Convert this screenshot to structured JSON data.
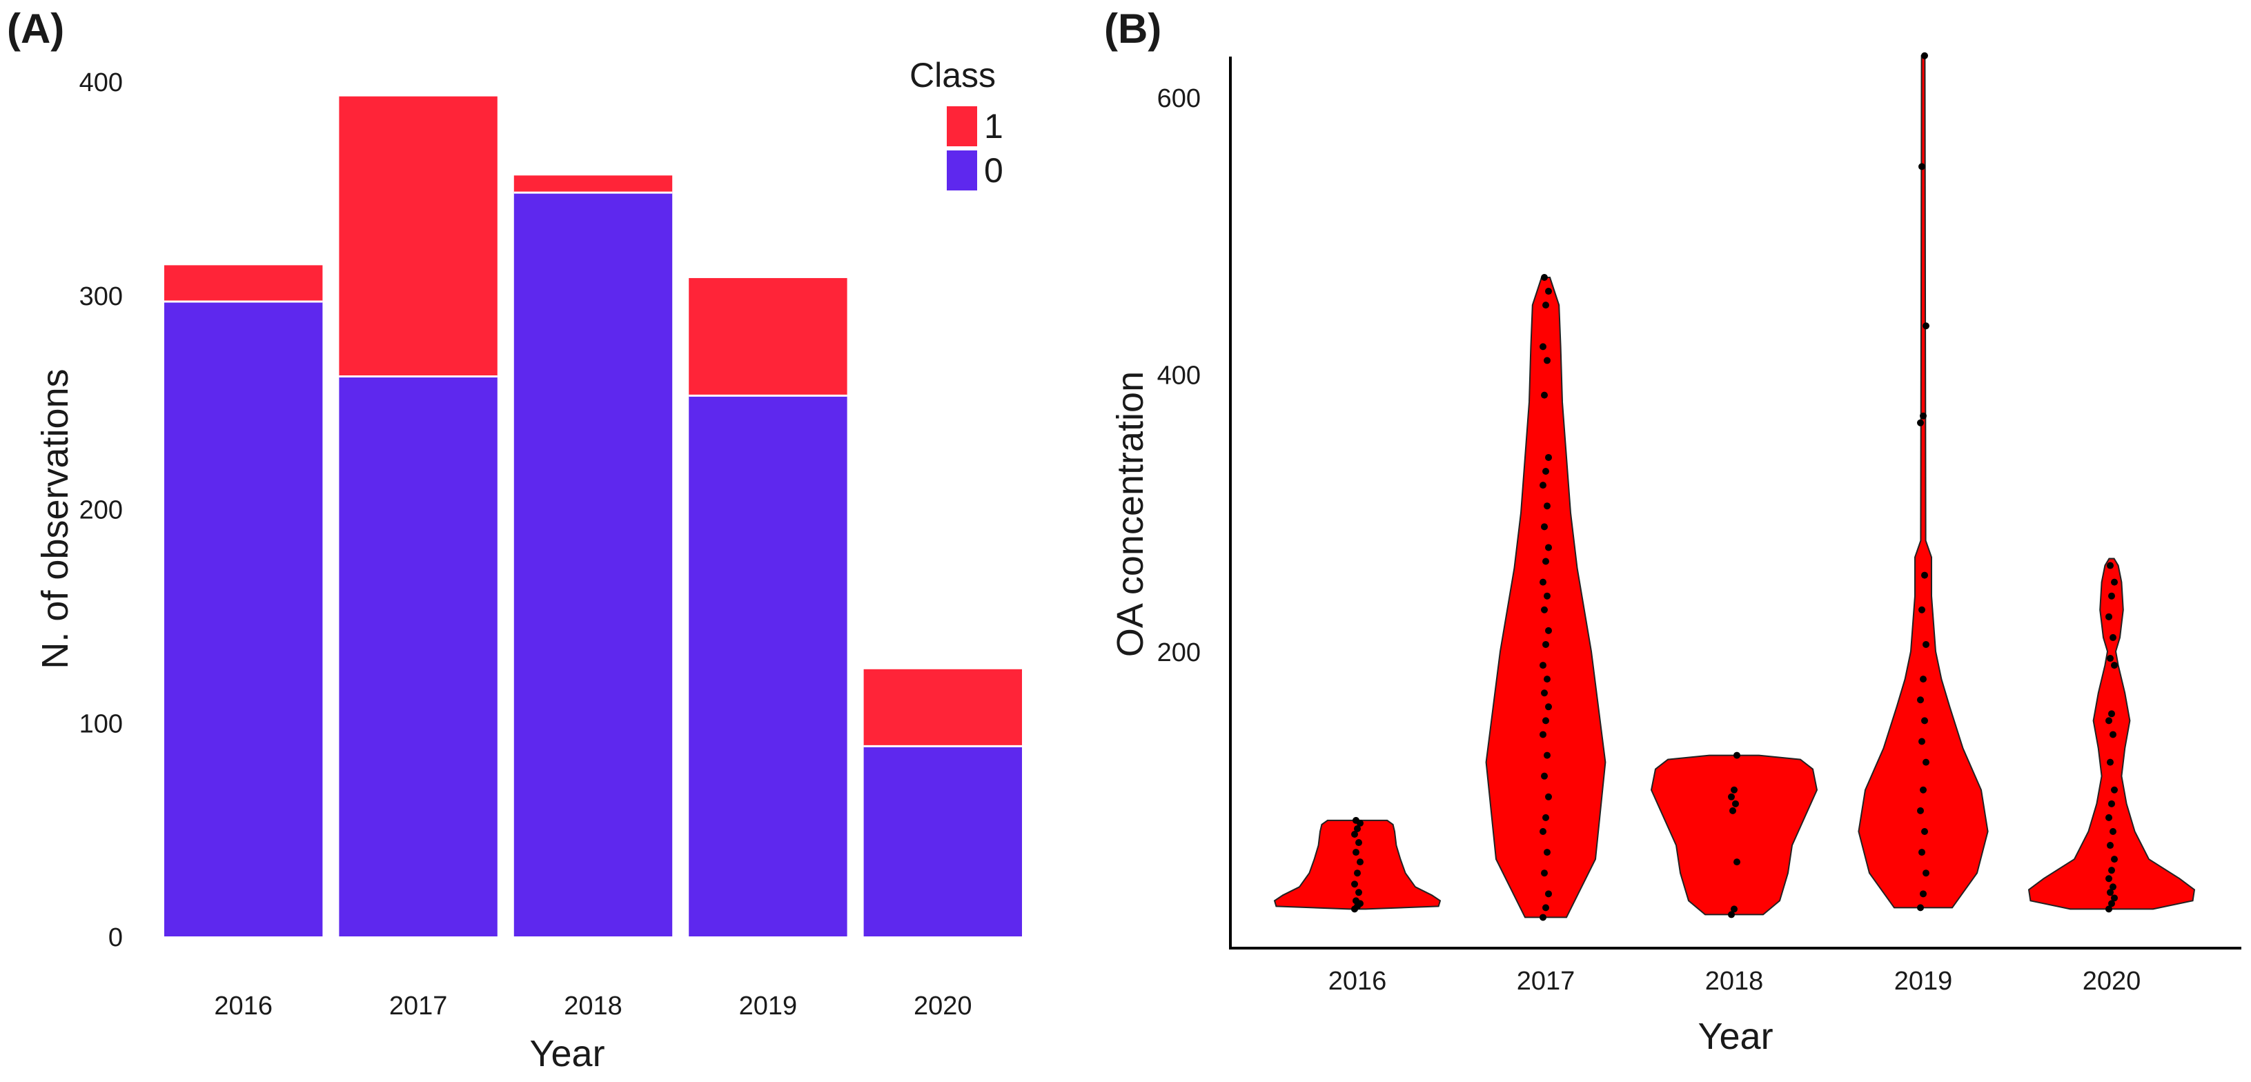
{
  "panels": {
    "a_label": "(A)",
    "b_label": "(B)"
  },
  "colors": {
    "class_1": "#FF2438",
    "class_0": "#5E28EE",
    "violin": "#FF0000",
    "point": "#000000"
  },
  "chart_data": [
    {
      "type": "bar",
      "stacked": true,
      "panel": "A",
      "categories": [
        "2016",
        "2017",
        "2018",
        "2019",
        "2020"
      ],
      "series": [
        {
          "name": "0",
          "values": [
            297,
            262,
            348,
            253,
            89
          ]
        },
        {
          "name": "1",
          "values": [
            17,
            131,
            8,
            55,
            36
          ]
        }
      ],
      "xlabel": "Year",
      "ylabel": "N. of observations",
      "ylim": [
        0,
        400
      ],
      "yticks": [
        "0",
        "100",
        "200",
        "300",
        "400"
      ],
      "legend": {
        "title": "Class",
        "entries": [
          "1",
          "0"
        ],
        "placement": "top-right"
      }
    },
    {
      "type": "violin",
      "panel": "B",
      "categories": [
        "2016",
        "2017",
        "2018",
        "2019",
        "2020"
      ],
      "xlabel": "Year",
      "ylabel": "OA concentration",
      "yticks": [
        "200",
        "400",
        "600"
      ],
      "ylim": [
        -20,
        645
      ],
      "violins": [
        {
          "year": "2016",
          "range": [
            14,
            78
          ],
          "profile": [
            [
              14,
              0.1
            ],
            [
              16,
              0.98
            ],
            [
              20,
              1.0
            ],
            [
              24,
              0.9
            ],
            [
              30,
              0.7
            ],
            [
              40,
              0.58
            ],
            [
              50,
              0.52
            ],
            [
              60,
              0.47
            ],
            [
              70,
              0.45
            ],
            [
              75,
              0.43
            ],
            [
              78,
              0.36
            ]
          ],
          "points": [
            14,
            16,
            18,
            20,
            26,
            32,
            40,
            48,
            55,
            62,
            68,
            72,
            76,
            78
          ]
        },
        {
          "year": "2017",
          "range": [
            8,
            470
          ],
          "profile": [
            [
              8,
              0.25
            ],
            [
              50,
              0.6
            ],
            [
              120,
              0.72
            ],
            [
              200,
              0.55
            ],
            [
              260,
              0.38
            ],
            [
              300,
              0.3
            ],
            [
              340,
              0.25
            ],
            [
              380,
              0.2
            ],
            [
              420,
              0.18
            ],
            [
              450,
              0.16
            ],
            [
              470,
              0.05
            ]
          ],
          "points": [
            8,
            15,
            25,
            40,
            55,
            70,
            80,
            95,
            110,
            125,
            140,
            150,
            160,
            170,
            180,
            190,
            205,
            215,
            230,
            240,
            250,
            265,
            275,
            290,
            305,
            320,
            330,
            340,
            385,
            410,
            420,
            450,
            460,
            470
          ]
        },
        {
          "year": "2018",
          "range": [
            10,
            125
          ],
          "profile": [
            [
              10,
              0.35
            ],
            [
              20,
              0.55
            ],
            [
              40,
              0.65
            ],
            [
              60,
              0.7
            ],
            [
              80,
              0.85
            ],
            [
              100,
              1.0
            ],
            [
              115,
              0.95
            ],
            [
              122,
              0.8
            ],
            [
              125,
              0.3
            ]
          ],
          "points": [
            10,
            14,
            48,
            85,
            90,
            95,
            100,
            125
          ]
        },
        {
          "year": "2019",
          "range": [
            15,
            630
          ],
          "profile": [
            [
              15,
              0.35
            ],
            [
              40,
              0.65
            ],
            [
              70,
              0.78
            ],
            [
              100,
              0.7
            ],
            [
              130,
              0.48
            ],
            [
              160,
              0.32
            ],
            [
              180,
              0.22
            ],
            [
              200,
              0.15
            ],
            [
              240,
              0.1
            ],
            [
              268,
              0.1
            ],
            [
              280,
              0.03
            ],
            [
              630,
              0.02
            ]
          ],
          "points": [
            15,
            25,
            40,
            55,
            70,
            85,
            100,
            120,
            135,
            150,
            165,
            180,
            205,
            230,
            255,
            365,
            370,
            435,
            550,
            630
          ]
        },
        {
          "year": "2020",
          "range": [
            14,
            267
          ],
          "profile": [
            [
              14,
              0.5
            ],
            [
              20,
              0.98
            ],
            [
              28,
              1.0
            ],
            [
              36,
              0.82
            ],
            [
              50,
              0.45
            ],
            [
              70,
              0.28
            ],
            [
              90,
              0.18
            ],
            [
              110,
              0.12
            ],
            [
              130,
              0.16
            ],
            [
              150,
              0.22
            ],
            [
              170,
              0.16
            ],
            [
              190,
              0.08
            ],
            [
              200,
              0.05
            ],
            [
              210,
              0.1
            ],
            [
              230,
              0.14
            ],
            [
              250,
              0.12
            ],
            [
              262,
              0.08
            ],
            [
              267,
              0.03
            ]
          ],
          "points": [
            14,
            18,
            22,
            26,
            30,
            36,
            42,
            50,
            60,
            70,
            80,
            90,
            100,
            120,
            140,
            150,
            155,
            190,
            195,
            210,
            225,
            240,
            250,
            262
          ]
        }
      ]
    }
  ]
}
